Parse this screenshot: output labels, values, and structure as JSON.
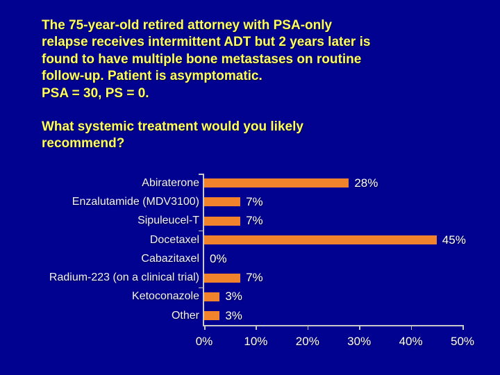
{
  "slide": {
    "background_color": "#020290",
    "title_color": "#FFFF5C",
    "case_text_lines": [
      "The 75-year-old retired attorney with PSA-only",
      "relapse receives intermittent ADT but 2 years later is",
      "found to have multiple bone metastases on routine",
      "follow-up. Patient is asymptomatic.",
      "PSA = 30, PS = 0."
    ],
    "question_lines": [
      "What systemic treatment would you likely",
      "recommend?"
    ]
  },
  "chart_data": {
    "type": "bar",
    "orientation": "horizontal",
    "title": "",
    "xlabel": "",
    "ylabel": "",
    "categories": [
      "Abiraterone",
      "Enzalutamide (MDV3100)",
      "Sipuleucel-T",
      "Docetaxel",
      "Cabazitaxel",
      "Radium-223 (on a clinical trial)",
      "Ketoconazole",
      "Other"
    ],
    "values": [
      28,
      7,
      7,
      45,
      0,
      7,
      3,
      3
    ],
    "value_labels": [
      "28%",
      "7%",
      "7%",
      "45%",
      "0%",
      "7%",
      "3%",
      "3%"
    ],
    "x_ticks": [
      0,
      10,
      20,
      30,
      40,
      50
    ],
    "x_tick_labels": [
      "0%",
      "10%",
      "20%",
      "30%",
      "40%",
      "50%"
    ],
    "xlim": [
      0,
      50
    ],
    "grid": false,
    "legend": false,
    "bar_color": "#F0832B",
    "category_label_color": "#F2F2FA",
    "value_label_color": "#FFFFFF",
    "axis_color": "#C9C9C9"
  }
}
